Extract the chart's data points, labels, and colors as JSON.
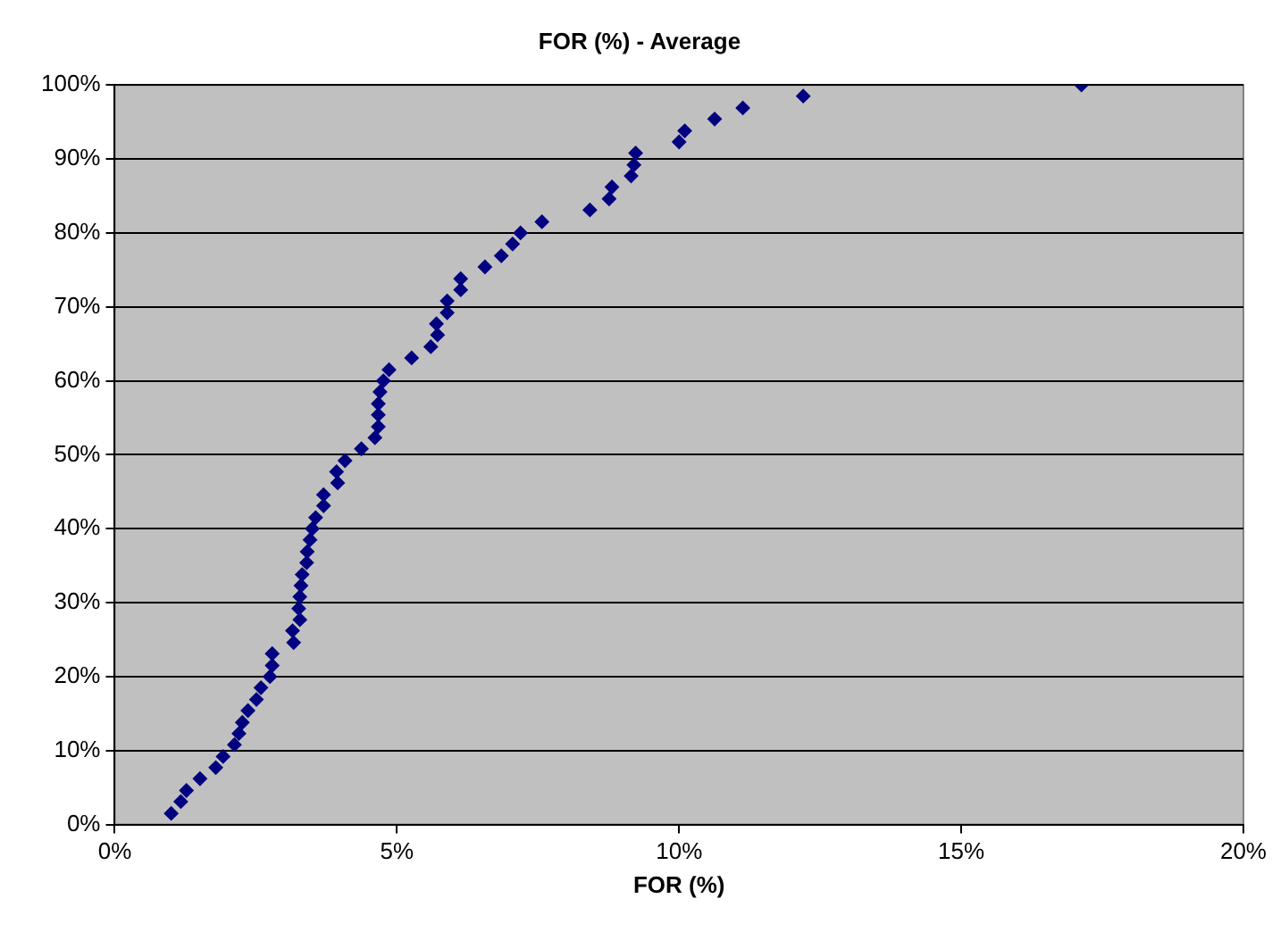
{
  "chart_data": {
    "type": "scatter",
    "title": "FOR (%) - Average",
    "xlabel": "FOR (%)",
    "x": [
      1.0,
      1.17,
      1.27,
      1.51,
      1.79,
      1.92,
      2.12,
      2.2,
      2.26,
      2.36,
      2.51,
      2.59,
      2.75,
      2.79,
      2.79,
      3.17,
      3.15,
      3.28,
      3.26,
      3.28,
      3.3,
      3.32,
      3.4,
      3.41,
      3.46,
      3.5,
      3.56,
      3.7,
      3.7,
      3.95,
      3.93,
      4.08,
      4.37,
      4.61,
      4.67,
      4.67,
      4.67,
      4.7,
      4.76,
      4.86,
      5.26,
      5.6,
      5.72,
      5.7,
      5.89,
      5.89,
      6.13,
      6.13,
      6.56,
      6.85,
      7.05,
      7.19,
      7.57,
      8.42,
      8.76,
      8.81,
      9.15,
      9.2,
      9.23,
      10.0,
      10.1,
      10.63,
      11.13,
      12.2,
      17.13
    ],
    "series": [
      {
        "color": "#000080",
        "values": [
          1.5,
          3.1,
          4.6,
          6.2,
          7.7,
          9.2,
          10.8,
          12.3,
          13.8,
          15.4,
          16.9,
          18.5,
          20.0,
          21.5,
          23.1,
          24.6,
          26.2,
          27.7,
          29.2,
          30.8,
          32.3,
          33.8,
          35.4,
          36.9,
          38.5,
          40.0,
          41.5,
          43.1,
          44.6,
          46.2,
          47.7,
          49.2,
          50.8,
          52.3,
          53.8,
          55.4,
          56.9,
          58.5,
          60.0,
          61.5,
          63.1,
          64.6,
          66.2,
          67.7,
          69.2,
          70.8,
          72.3,
          73.8,
          75.4,
          76.9,
          78.5,
          80.0,
          81.5,
          83.1,
          84.6,
          86.2,
          87.7,
          89.2,
          90.8,
          92.3,
          93.8,
          95.4,
          96.9,
          98.5,
          100.0
        ]
      }
    ],
    "xlim": [
      0,
      20
    ],
    "xticks": [
      {
        "value": 0,
        "label": "0%"
      },
      {
        "value": 5,
        "label": "5%"
      },
      {
        "value": 10,
        "label": "10%"
      },
      {
        "value": 15,
        "label": "15%"
      },
      {
        "value": 20,
        "label": "20%"
      }
    ],
    "ylim": [
      0,
      100
    ],
    "yticks": [
      {
        "value": 0,
        "label": "0%"
      },
      {
        "value": 10,
        "label": "10%"
      },
      {
        "value": 20,
        "label": "20%"
      },
      {
        "value": 30,
        "label": "30%"
      },
      {
        "value": 40,
        "label": "40%"
      },
      {
        "value": 50,
        "label": "50%"
      },
      {
        "value": 60,
        "label": "60%"
      },
      {
        "value": 70,
        "label": "70%"
      },
      {
        "value": 80,
        "label": "80%"
      },
      {
        "value": 90,
        "label": "90%"
      },
      {
        "value": 100,
        "label": "100%"
      }
    ],
    "grid": "y",
    "legend": false,
    "marker": "diamond"
  }
}
